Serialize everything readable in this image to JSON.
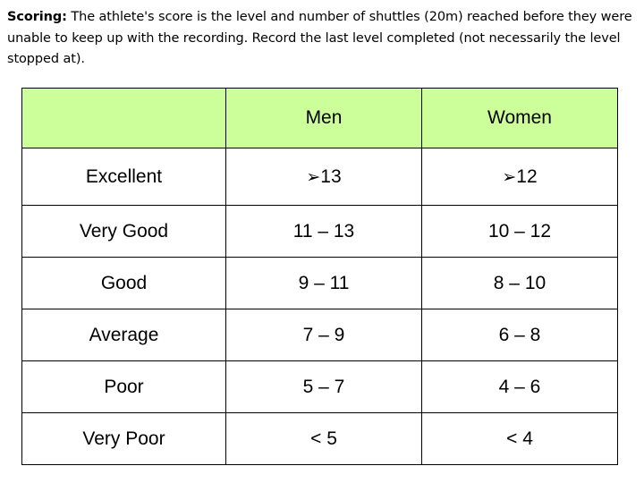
{
  "intro": {
    "label": "Scoring:",
    "text": "The athlete's score is the level and number of shuttles (20m) reached before they were unable to keep up with the recording. Record the last level completed (not necessarily the level stopped at)."
  },
  "table": {
    "header_color": "#ccff99",
    "headers": [
      "",
      "Men",
      "Women"
    ],
    "rows": [
      {
        "rating": "Excellent",
        "men": "13",
        "women": "12",
        "men_prefix": "arrow-icon",
        "women_prefix": "arrow-icon"
      },
      {
        "rating": "Very Good",
        "men": "11 – 13",
        "women": "10 – 12"
      },
      {
        "rating": "Good",
        "men": "9 – 11",
        "women": "8 – 10"
      },
      {
        "rating": "Average",
        "men": "7 – 9",
        "women": "6 – 8"
      },
      {
        "rating": "Poor",
        "men": "5 – 7",
        "women": "4 – 6"
      },
      {
        "rating": "Very Poor",
        "men": "< 5",
        "women": "< 4"
      }
    ]
  }
}
